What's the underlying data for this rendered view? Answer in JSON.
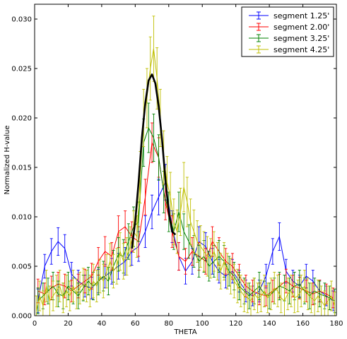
{
  "chart_data": {
    "type": "line",
    "title": "",
    "xlabel": "THETA",
    "ylabel": "Normalized H-value",
    "xlim": [
      0,
      180
    ],
    "ylim": [
      0,
      0.0315
    ],
    "xticks": [
      0,
      20,
      40,
      60,
      80,
      100,
      120,
      140,
      160,
      180
    ],
    "xtick_labels": [
      "0",
      "20",
      "40",
      "60",
      "80",
      "100",
      "120",
      "140",
      "160",
      "180"
    ],
    "yticks": [
      0,
      0.005,
      0.01,
      0.015,
      0.02,
      0.025,
      0.03
    ],
    "ytick_labels": [
      "0.000",
      "0.005",
      "0.010",
      "0.015",
      "0.020",
      "0.025",
      "0.030"
    ],
    "grid": false,
    "legend_position": "top-right",
    "error_bars": true,
    "series": [
      {
        "name": "segment 1.25'",
        "color": "#0000ff",
        "x": [
          2,
          6,
          10,
          14,
          18,
          22,
          26,
          30,
          34,
          38,
          42,
          46,
          50,
          54,
          58,
          62,
          66,
          70,
          74,
          78,
          82,
          86,
          90,
          94,
          98,
          102,
          106,
          110,
          114,
          118,
          122,
          126,
          130,
          134,
          138,
          142,
          146,
          150,
          154,
          158,
          162,
          166,
          170,
          174,
          178
        ],
        "y": [
          0.0015,
          0.005,
          0.0065,
          0.0075,
          0.0068,
          0.0042,
          0.0035,
          0.003,
          0.0028,
          0.0035,
          0.004,
          0.0045,
          0.005,
          0.0055,
          0.0065,
          0.007,
          0.0085,
          0.0105,
          0.012,
          0.0135,
          0.009,
          0.006,
          0.0045,
          0.0055,
          0.0075,
          0.007,
          0.0055,
          0.0045,
          0.004,
          0.0045,
          0.0035,
          0.0025,
          0.002,
          0.0025,
          0.004,
          0.0065,
          0.008,
          0.0045,
          0.0035,
          0.003,
          0.004,
          0.0035,
          0.0025,
          0.002,
          0.0015
        ],
        "err": [
          0.0012,
          0.0012,
          0.0013,
          0.0014,
          0.0014,
          0.0012,
          0.0011,
          0.0011,
          0.0011,
          0.0012,
          0.0012,
          0.0013,
          0.0013,
          0.0014,
          0.0014,
          0.0015,
          0.0016,
          0.0017,
          0.0018,
          0.0018,
          0.0016,
          0.0014,
          0.0013,
          0.0013,
          0.0015,
          0.0014,
          0.0013,
          0.0012,
          0.0012,
          0.0012,
          0.0011,
          0.0011,
          0.001,
          0.0011,
          0.0012,
          0.0013,
          0.0014,
          0.0012,
          0.0011,
          0.0011,
          0.0012,
          0.0011,
          0.0011,
          0.001,
          0.001
        ]
      },
      {
        "name": "segment 2.00'",
        "color": "#ff0000",
        "x": [
          2,
          6,
          10,
          14,
          18,
          22,
          26,
          30,
          34,
          38,
          42,
          46,
          50,
          54,
          58,
          62,
          66,
          70,
          74,
          78,
          82,
          86,
          90,
          94,
          98,
          102,
          106,
          110,
          114,
          118,
          122,
          126,
          130,
          134,
          138,
          142,
          146,
          150,
          154,
          158,
          162,
          166,
          170,
          174,
          178
        ],
        "y": [
          0.0025,
          0.0022,
          0.0028,
          0.0032,
          0.003,
          0.0025,
          0.003,
          0.0035,
          0.004,
          0.0055,
          0.0065,
          0.006,
          0.0085,
          0.009,
          0.008,
          0.0075,
          0.012,
          0.0175,
          0.016,
          0.0115,
          0.0085,
          0.006,
          0.0055,
          0.0065,
          0.006,
          0.0055,
          0.0075,
          0.0065,
          0.0055,
          0.005,
          0.004,
          0.003,
          0.0025,
          0.0022,
          0.002,
          0.0025,
          0.003,
          0.0035,
          0.003,
          0.0028,
          0.0025,
          0.0022,
          0.0025,
          0.0022,
          0.0018
        ],
        "err": [
          0.0012,
          0.0011,
          0.0012,
          0.0012,
          0.0012,
          0.0011,
          0.0012,
          0.0012,
          0.0013,
          0.0014,
          0.0015,
          0.0014,
          0.0016,
          0.0016,
          0.0015,
          0.0015,
          0.0018,
          0.002,
          0.002,
          0.0018,
          0.0016,
          0.0014,
          0.0013,
          0.0014,
          0.0014,
          0.0013,
          0.0015,
          0.0014,
          0.0013,
          0.0013,
          0.0012,
          0.0011,
          0.0011,
          0.0011,
          0.001,
          0.0011,
          0.0012,
          0.0012,
          0.0011,
          0.0011,
          0.0011,
          0.0011,
          0.0011,
          0.001,
          0.001
        ]
      },
      {
        "name": "segment 3.25'",
        "color": "#008000",
        "x": [
          2,
          5,
          8,
          11,
          14,
          17,
          20,
          23,
          26,
          29,
          32,
          35,
          38,
          41,
          44,
          47,
          50,
          53,
          56,
          59,
          62,
          65,
          68,
          71,
          74,
          77,
          80,
          83,
          86,
          89,
          92,
          95,
          98,
          101,
          104,
          107,
          110,
          113,
          116,
          119,
          122,
          125,
          128,
          131,
          134,
          137,
          140,
          143,
          146,
          149,
          152,
          155,
          158,
          161,
          164,
          167,
          170,
          173,
          176,
          179
        ],
        "y": [
          0.0015,
          0.002,
          0.0025,
          0.003,
          0.0022,
          0.002,
          0.003,
          0.0025,
          0.002,
          0.0028,
          0.0035,
          0.003,
          0.0035,
          0.004,
          0.0035,
          0.005,
          0.0062,
          0.006,
          0.0075,
          0.009,
          0.0095,
          0.0175,
          0.019,
          0.018,
          0.016,
          0.0125,
          0.0105,
          0.0085,
          0.0105,
          0.0085,
          0.0075,
          0.0065,
          0.0055,
          0.006,
          0.005,
          0.0055,
          0.006,
          0.0055,
          0.0045,
          0.004,
          0.003,
          0.0025,
          0.002,
          0.0025,
          0.003,
          0.0022,
          0.002,
          0.0025,
          0.003,
          0.0028,
          0.0025,
          0.003,
          0.0032,
          0.0025,
          0.002,
          0.0025,
          0.0022,
          0.002,
          0.0018,
          0.0015
        ],
        "err": [
          0.0013,
          0.0013,
          0.0013,
          0.0014,
          0.0013,
          0.0013,
          0.0014,
          0.0013,
          0.0013,
          0.0013,
          0.0014,
          0.0014,
          0.0014,
          0.0015,
          0.0014,
          0.0016,
          0.0017,
          0.0017,
          0.0018,
          0.002,
          0.002,
          0.0024,
          0.0025,
          0.0024,
          0.0023,
          0.0021,
          0.002,
          0.0018,
          0.002,
          0.0018,
          0.0017,
          0.0016,
          0.0016,
          0.0016,
          0.0015,
          0.0016,
          0.0016,
          0.0016,
          0.0015,
          0.0014,
          0.0014,
          0.0013,
          0.0013,
          0.0013,
          0.0014,
          0.0013,
          0.0013,
          0.0013,
          0.0014,
          0.0013,
          0.0013,
          0.0014,
          0.0014,
          0.0013,
          0.0013,
          0.0013,
          0.0013,
          0.0013,
          0.0012,
          0.0012
        ]
      },
      {
        "name": "segment 4.25'",
        "color": "#bfbf00",
        "x": [
          1,
          3,
          5,
          7,
          9,
          11,
          13,
          15,
          17,
          19,
          21,
          23,
          25,
          27,
          29,
          31,
          33,
          35,
          37,
          39,
          41,
          43,
          45,
          47,
          49,
          51,
          53,
          55,
          57,
          59,
          61,
          63,
          65,
          67,
          69,
          71,
          73,
          75,
          77,
          79,
          81,
          83,
          85,
          87,
          89,
          91,
          93,
          95,
          97,
          99,
          101,
          103,
          105,
          107,
          109,
          111,
          113,
          115,
          117,
          119,
          121,
          123,
          125,
          127,
          129,
          131,
          133,
          135,
          137,
          139,
          141,
          143,
          145,
          147,
          149,
          151,
          153,
          155,
          157,
          159,
          161,
          163,
          165,
          167,
          169,
          171,
          173,
          175,
          177,
          179
        ],
        "y": [
          0.0005,
          0.002,
          0.001,
          0.003,
          0.0015,
          0.002,
          0.0025,
          0.003,
          0.0018,
          0.0025,
          0.002,
          0.003,
          0.0022,
          0.0028,
          0.0032,
          0.003,
          0.0025,
          0.0035,
          0.003,
          0.004,
          0.0035,
          0.0045,
          0.0055,
          0.0045,
          0.005,
          0.0065,
          0.0055,
          0.006,
          0.007,
          0.0085,
          0.008,
          0.014,
          0.02,
          0.022,
          0.025,
          0.027,
          0.024,
          0.02,
          0.016,
          0.0135,
          0.012,
          0.0095,
          0.0085,
          0.0105,
          0.013,
          0.0115,
          0.0095,
          0.0085,
          0.0075,
          0.007,
          0.0065,
          0.006,
          0.0058,
          0.0065,
          0.0055,
          0.0045,
          0.0055,
          0.0045,
          0.004,
          0.0035,
          0.003,
          0.0025,
          0.002,
          0.0018,
          0.0015,
          0.0022,
          0.0018,
          0.002,
          0.0025,
          0.0018,
          0.0022,
          0.0028,
          0.0025,
          0.0018,
          0.0015,
          0.0022,
          0.0025,
          0.0018,
          0.002,
          0.0025,
          0.003,
          0.0022,
          0.0018,
          0.0015,
          0.002,
          0.0015,
          0.001,
          0.0015,
          0.002,
          0.001
        ],
        "err": [
          0.0015,
          0.0015,
          0.0015,
          0.0016,
          0.0015,
          0.0015,
          0.0016,
          0.0016,
          0.0015,
          0.0016,
          0.0015,
          0.0016,
          0.0015,
          0.0016,
          0.0016,
          0.0016,
          0.0016,
          0.0017,
          0.0016,
          0.0017,
          0.0017,
          0.0017,
          0.0018,
          0.0017,
          0.0018,
          0.0019,
          0.0018,
          0.0019,
          0.002,
          0.0021,
          0.0021,
          0.0026,
          0.0029,
          0.003,
          0.0032,
          0.0033,
          0.0031,
          0.0029,
          0.0027,
          0.0026,
          0.0025,
          0.0023,
          0.0022,
          0.0024,
          0.0025,
          0.0025,
          0.0023,
          0.0022,
          0.0021,
          0.0021,
          0.002,
          0.002,
          0.002,
          0.002,
          0.0019,
          0.0018,
          0.0019,
          0.0018,
          0.0018,
          0.0017,
          0.0017,
          0.0016,
          0.0016,
          0.0015,
          0.0015,
          0.0016,
          0.0015,
          0.0016,
          0.0016,
          0.0015,
          0.0016,
          0.0016,
          0.0016,
          0.0015,
          0.0015,
          0.0016,
          0.0016,
          0.0015,
          0.0016,
          0.0016,
          0.0016,
          0.0016,
          0.0015,
          0.0015,
          0.0016,
          0.0015,
          0.0015,
          0.0015,
          0.0015,
          0.0014
        ]
      }
    ],
    "fit_curve": {
      "color": "#000000",
      "x": [
        58,
        60,
        62,
        64,
        66,
        68,
        70,
        72,
        74,
        76,
        78,
        80,
        82,
        84
      ],
      "y": [
        0.0068,
        0.0095,
        0.0135,
        0.018,
        0.0215,
        0.0238,
        0.0244,
        0.0235,
        0.0212,
        0.0178,
        0.0138,
        0.0105,
        0.0085,
        0.0082
      ]
    }
  }
}
